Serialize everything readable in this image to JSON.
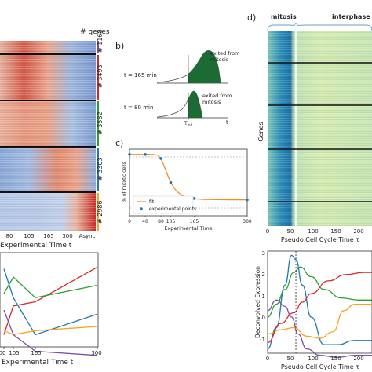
{
  "panel_labels": {
    "b": "b)",
    "c": "c)",
    "d": "d)"
  },
  "panel_a": {
    "genes_header": "# genes",
    "cluster_counts": [
      "# 1168",
      "# 3493",
      "# 3562",
      "# 3303",
      "# 2986"
    ],
    "cluster_colors": [
      "#7b4ea3",
      "#d62728",
      "#2ca02c",
      "#1f77b4",
      "#ff9f1c"
    ],
    "x_ticks": [
      "80",
      "105",
      "165",
      "300",
      "Async"
    ],
    "xlabel": "Experimental Time t"
  },
  "panel_a_lines": {
    "x_ticks": [
      "00",
      "105",
      "165",
      "300"
    ],
    "xlabel": "Experimental Time t"
  },
  "panel_b": {
    "t165_label": "t = 165 min",
    "t80_label": "t = 80 min",
    "exited_label_1": "exited from\nmitosis",
    "exited_label_2": "exited from\nmitosis",
    "tmit_label": "T",
    "tmit_sub": "mit",
    "t_axis": "t"
  },
  "panel_d": {
    "mitosis_label": "mitosis",
    "interphase_label": "interphase",
    "ylabel": "Genes",
    "x_ticks": [
      "0",
      "50",
      "100",
      "150",
      "200"
    ],
    "xlabel": "Pseudo Cell Cycle Time τ"
  },
  "panel_d_lines": {
    "ylabel": "Deconvolved Expression",
    "y_ticks": [
      "3",
      "2",
      "1",
      "0",
      "-1"
    ],
    "x_ticks": [
      "0",
      "50",
      "100",
      "150",
      "200"
    ],
    "xlabel": "Pseudo Cell Cycle Time τ"
  },
  "chart_data": [
    {
      "type": "scatter",
      "title": "",
      "xlabel": "Experimental Time",
      "ylabel": "% of mitotic cells",
      "x_ticks": [
        "0",
        "40",
        "80",
        "105",
        "165",
        "300"
      ],
      "xlim": [
        0,
        300
      ],
      "ylim": [
        0,
        100
      ],
      "legend_position": "bottom-left",
      "legend": [
        "fit",
        "experimental points"
      ],
      "series": [
        {
          "name": "experimental points",
          "x": [
            0,
            40,
            80,
            105,
            165,
            300
          ],
          "y": [
            92,
            92,
            86,
            50,
            26,
            24
          ]
        },
        {
          "name": "fit",
          "x": [
            0,
            20,
            40,
            60,
            72,
            80,
            90,
            100,
            110,
            120,
            135,
            150,
            165,
            190,
            220,
            260,
            300
          ],
          "y": [
            92,
            92,
            92,
            92,
            91,
            86,
            72,
            57,
            45,
            37,
            30,
            27,
            25.5,
            24.6,
            24.2,
            24,
            24
          ]
        }
      ]
    },
    {
      "type": "line",
      "title": "",
      "xlabel": "Experimental Time t",
      "x_ticks": [
        "00",
        "105",
        "165",
        "300"
      ],
      "xlim": [
        80,
        300
      ],
      "series": [
        {
          "color": "#d62728",
          "x": [
            80,
            105,
            165,
            300
          ],
          "y": [
            0.1,
            0.45,
            0.5,
            0.92
          ]
        },
        {
          "color": "#2ca02c",
          "x": [
            80,
            105,
            165,
            300
          ],
          "y": [
            0.6,
            0.8,
            0.55,
            0.7
          ]
        },
        {
          "color": "#1f77b4",
          "x": [
            80,
            105,
            165,
            300
          ],
          "y": [
            0.9,
            0.55,
            0.1,
            0.35
          ]
        },
        {
          "color": "#ff9f1c",
          "x": [
            80,
            105,
            165,
            300
          ],
          "y": [
            0.15,
            0.1,
            0.15,
            0.2
          ]
        },
        {
          "color": "#7b4ea3",
          "x": [
            80,
            105,
            165,
            300
          ],
          "y": [
            0.4,
            0.1,
            -0.1,
            -0.15
          ]
        }
      ]
    },
    {
      "type": "line",
      "title": "",
      "xlabel": "Pseudo Cell Cycle Time τ",
      "ylabel": "Deconvolved Expression",
      "xlim": [
        0,
        240
      ],
      "ylim": [
        -1.7,
        3.1
      ],
      "marker_x": 65,
      "series": [
        {
          "color": "#1f77b4",
          "x": [
            0,
            20,
            40,
            55,
            65,
            80,
            100,
            130,
            160,
            200,
            240
          ],
          "y": [
            -1.5,
            -0.5,
            1.5,
            2.9,
            2.7,
            1.5,
            0.0,
            -1.3,
            -1.3,
            -1.1,
            -1.1
          ]
        },
        {
          "color": "#2ca02c",
          "x": [
            0,
            20,
            40,
            60,
            75,
            100,
            130,
            170,
            210,
            240
          ],
          "y": [
            0.0,
            0.6,
            1.3,
            2.1,
            2.35,
            1.9,
            1.3,
            0.9,
            0.8,
            0.8
          ]
        },
        {
          "color": "#7b4ea3",
          "x": [
            0,
            20,
            40,
            55,
            70,
            90,
            120,
            160,
            200,
            240
          ],
          "y": [
            0.3,
            0.8,
            0.5,
            0.0,
            -0.8,
            -1.5,
            -1.8,
            -1.9,
            -1.8,
            -1.8
          ]
        },
        {
          "color": "#ff9f1c",
          "x": [
            0,
            30,
            60,
            90,
            120,
            150,
            175,
            200,
            240
          ],
          "y": [
            -0.8,
            -0.6,
            -0.5,
            -0.9,
            -1.0,
            -0.7,
            0.3,
            0.6,
            0.6
          ]
        },
        {
          "color": "#d62728",
          "x": [
            0,
            30,
            60,
            80,
            100,
            140,
            180,
            220,
            240
          ],
          "y": [
            -1.2,
            -0.3,
            0.2,
            0.7,
            1.1,
            1.7,
            2.0,
            2.1,
            2.1
          ]
        }
      ]
    }
  ]
}
